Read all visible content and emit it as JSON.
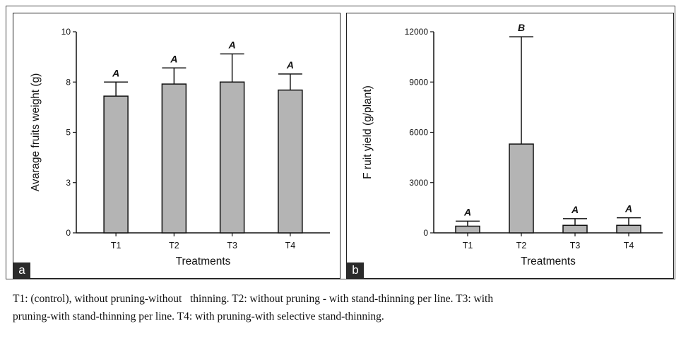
{
  "chart_data": [
    {
      "type": "bar",
      "panel_label": "a",
      "categories": [
        "T1",
        "T2",
        "T3",
        "T4"
      ],
      "values": [
        6.8,
        7.4,
        7.5,
        7.1
      ],
      "error_upper": [
        7.5,
        8.2,
        8.9,
        7.9
      ],
      "letters": [
        "A",
        "A",
        "A",
        "A"
      ],
      "ylim": [
        0,
        10
      ],
      "yticks": [
        0,
        2.5,
        5,
        7.5,
        10
      ],
      "ytick_labels": [
        "0",
        "3",
        "5",
        "8",
        "10"
      ],
      "xlabel": "Treatments",
      "ylabel": "Avarage fruits weight (g)",
      "bar_color": "#b4b4b4"
    },
    {
      "type": "bar",
      "panel_label": "b",
      "categories": [
        "T1",
        "T2",
        "T3",
        "T4"
      ],
      "values": [
        400,
        5300,
        450,
        450
      ],
      "error_upper": [
        700,
        11700,
        850,
        900
      ],
      "letters": [
        "A",
        "B",
        "A",
        "A"
      ],
      "ylim": [
        0,
        12000
      ],
      "yticks": [
        0,
        3000,
        6000,
        9000,
        12000
      ],
      "ytick_labels": [
        "0",
        "3000",
        "6000",
        "9000",
        "12000"
      ],
      "xlabel": "Treatments",
      "ylabel": "F ruit yield (g/plant)",
      "bar_color": "#b4b4b4"
    }
  ],
  "caption": {
    "line1": "T1: (control), without pruning-without   thinning. T2: without pruning - with stand-thinning per line. T3: with",
    "line2": "pruning-with stand-thinning per line. T4: with pruning-with selective stand-thinning."
  }
}
